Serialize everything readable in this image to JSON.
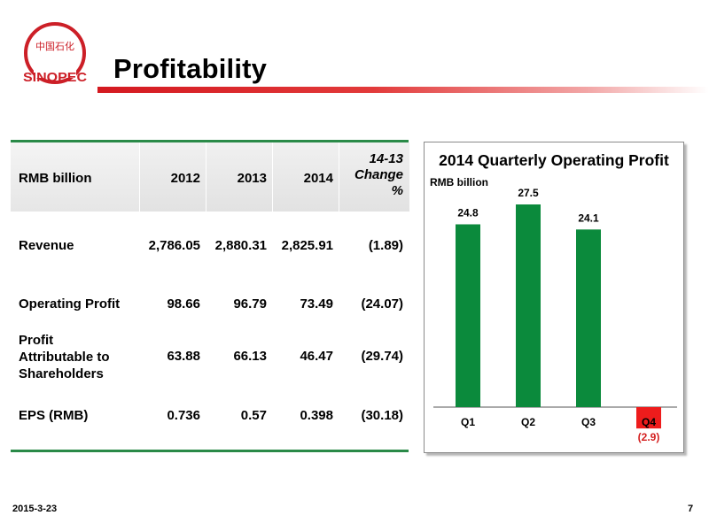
{
  "header": {
    "title": "Profitability",
    "logo_text": "SINOPEC",
    "logo_chinese": "中国石化"
  },
  "table": {
    "columns": [
      "RMB billion",
      "2012",
      "2013",
      "2014",
      "14-13 Change %"
    ],
    "change_header_lines": [
      "14-13",
      "Change",
      "%"
    ],
    "rows": [
      {
        "label_lines": [
          "Revenue"
        ],
        "values": [
          "2,786.05",
          "2,880.31",
          "2,825.91",
          "(1.89)"
        ]
      },
      {
        "label_lines": [
          "Operating Profit"
        ],
        "values": [
          "98.66",
          "96.79",
          "73.49",
          "(24.07)"
        ]
      },
      {
        "label_lines": [
          "Profit",
          "Attributable to",
          "Shareholders"
        ],
        "values": [
          "63.88",
          "66.13",
          "46.47",
          "(29.74)"
        ]
      },
      {
        "label_lines": [
          "EPS (RMB)"
        ],
        "values": [
          "0.736",
          "0.57",
          "0.398",
          "(30.18)"
        ]
      }
    ],
    "rule_color": "#2a8a48"
  },
  "chart_data": {
    "type": "bar",
    "title": "2014 Quarterly Operating Profit",
    "ylabel": "RMB billion",
    "categories": [
      "Q1",
      "Q2",
      "Q3",
      "Q4"
    ],
    "values": [
      24.8,
      27.5,
      24.1,
      -2.9
    ],
    "data_labels": [
      "24.8",
      "27.5",
      "24.1",
      "(2.9)"
    ],
    "ylim": [
      -2.9,
      27.5
    ],
    "colors": {
      "positive": "#0b8a3c",
      "negative": "#ee1c1c",
      "negative_label": "#d42020"
    }
  },
  "footer": {
    "date": "2015-3-23",
    "page": "7"
  }
}
